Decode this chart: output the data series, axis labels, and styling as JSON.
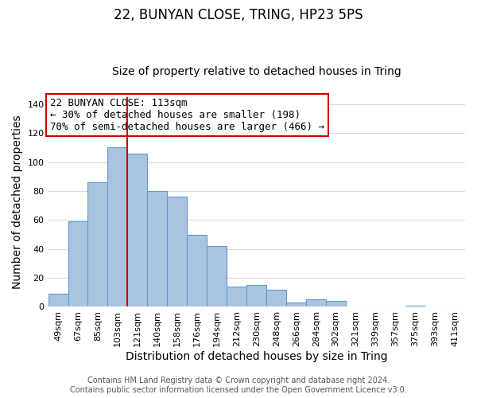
{
  "title": "22, BUNYAN CLOSE, TRING, HP23 5PS",
  "subtitle": "Size of property relative to detached houses in Tring",
  "xlabel": "Distribution of detached houses by size in Tring",
  "ylabel": "Number of detached properties",
  "footer_line1": "Contains HM Land Registry data © Crown copyright and database right 2024.",
  "footer_line2": "Contains public sector information licensed under the Open Government Licence v3.0.",
  "annotation_line1": "22 BUNYAN CLOSE: 113sqm",
  "annotation_line2": "← 30% of detached houses are smaller (198)",
  "annotation_line3": "70% of semi-detached houses are larger (466) →",
  "bar_labels": [
    "49sqm",
    "67sqm",
    "85sqm",
    "103sqm",
    "121sqm",
    "140sqm",
    "158sqm",
    "176sqm",
    "194sqm",
    "212sqm",
    "230sqm",
    "248sqm",
    "266sqm",
    "284sqm",
    "302sqm",
    "321sqm",
    "339sqm",
    "357sqm",
    "375sqm",
    "393sqm",
    "411sqm"
  ],
  "bar_values": [
    9,
    59,
    86,
    110,
    106,
    80,
    76,
    50,
    42,
    14,
    15,
    12,
    3,
    5,
    4,
    0,
    0,
    0,
    1,
    0,
    0
  ],
  "bar_color": "#aac4e0",
  "bar_edge_color": "#5b9bd5",
  "ref_line_color": "#cc0000",
  "annotation_box_color": "#ffffff",
  "annotation_box_edge_color": "#cc0000",
  "ylim": [
    0,
    145
  ],
  "yticks": [
    0,
    20,
    40,
    60,
    80,
    100,
    120,
    140
  ],
  "background_color": "#ffffff",
  "grid_color": "#d0dce8",
  "title_fontsize": 12,
  "subtitle_fontsize": 10,
  "axis_label_fontsize": 10,
  "tick_fontsize": 8,
  "annotation_fontsize": 9,
  "footer_fontsize": 7
}
